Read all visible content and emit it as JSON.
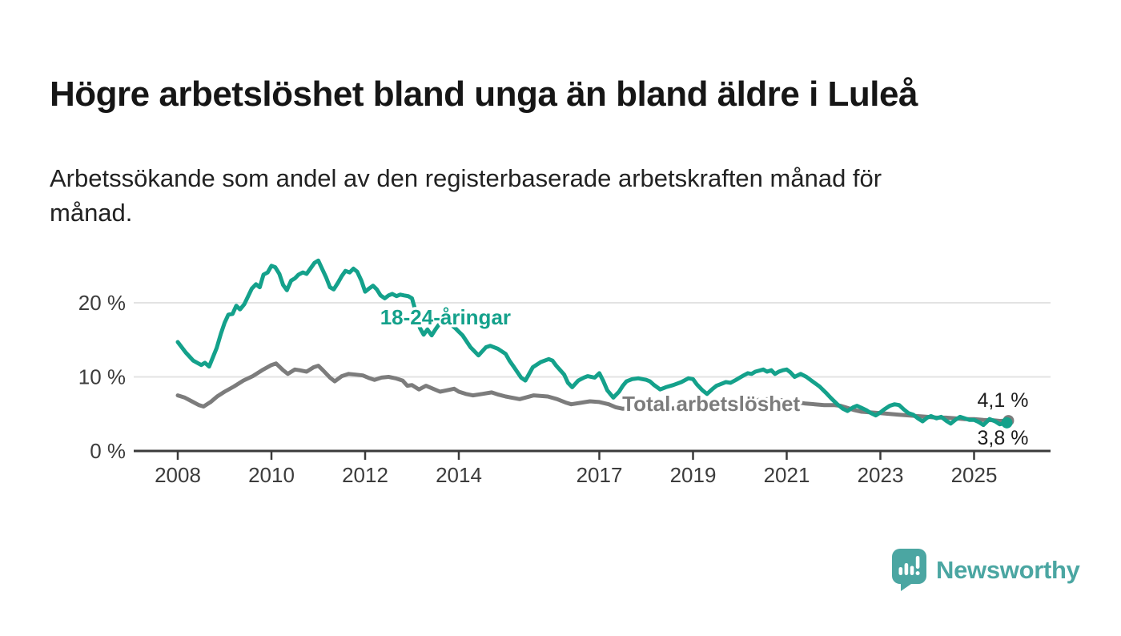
{
  "header": {
    "title": "Högre arbetslöshet bland unga än bland äldre i Luleå",
    "subtitle_line1": "Arbetssökande som andel av den registerbaserade arbetskraften månad för",
    "subtitle_line2": "månad."
  },
  "footer": {
    "brand": "Newsworthy",
    "brand_color": "#4BA6A2",
    "logo_icon": "newsworthy-speech-bubble-bar-chart-icon"
  },
  "chart_data": {
    "type": "line",
    "title": "Högre arbetslöshet bland unga än bland äldre i Luleå",
    "subtitle": "Arbetssökande som andel av den registerbaserade arbetskraften månad för månad.",
    "xlabel": "",
    "ylabel": "",
    "unit": "%",
    "grid": "horizontal gridlines at 10 % and 20 % only",
    "legend_position": "inline labels on lines",
    "x_axis": {
      "ticks": [
        2008,
        2010,
        2012,
        2014,
        2017,
        2019,
        2021,
        2023,
        2025
      ],
      "range": [
        2007.1,
        2026.6
      ]
    },
    "y_axis": {
      "ticks": [
        {
          "value": 0,
          "label": "0 %"
        },
        {
          "value": 10,
          "label": "10 %"
        },
        {
          "value": 20,
          "label": "20 %"
        }
      ],
      "range": [
        0,
        29
      ]
    },
    "colors": {
      "youth_line": "#14A18B",
      "total_line": "#7C7C7C",
      "grid": "#E3E3E3",
      "axis": "#3A3A3A",
      "tick_text": "#3C3C3C",
      "end_label_text": "#1D1D1D"
    },
    "series": [
      {
        "name": "18-24-åringar",
        "color": "#14A18B",
        "end_value": 3.8,
        "end_label": "3,8 %",
        "end_label_side": "below",
        "label_pos": {
          "x": 2012.32,
          "y": 17.1
        },
        "points": [
          [
            2008.0,
            14.7
          ],
          [
            2008.17,
            13.3
          ],
          [
            2008.33,
            12.2
          ],
          [
            2008.5,
            11.6
          ],
          [
            2008.58,
            11.9
          ],
          [
            2008.67,
            11.4
          ],
          [
            2008.83,
            13.9
          ],
          [
            2008.92,
            15.8
          ],
          [
            2009.0,
            17.3
          ],
          [
            2009.08,
            18.4
          ],
          [
            2009.17,
            18.5
          ],
          [
            2009.25,
            19.6
          ],
          [
            2009.33,
            19.1
          ],
          [
            2009.42,
            19.8
          ],
          [
            2009.58,
            21.9
          ],
          [
            2009.67,
            22.5
          ],
          [
            2009.75,
            22.1
          ],
          [
            2009.83,
            23.8
          ],
          [
            2009.92,
            24.1
          ],
          [
            2010.0,
            25.0
          ],
          [
            2010.08,
            24.8
          ],
          [
            2010.17,
            23.9
          ],
          [
            2010.25,
            22.4
          ],
          [
            2010.33,
            21.7
          ],
          [
            2010.42,
            23.0
          ],
          [
            2010.5,
            23.3
          ],
          [
            2010.58,
            23.8
          ],
          [
            2010.67,
            24.1
          ],
          [
            2010.75,
            23.9
          ],
          [
            2010.83,
            24.6
          ],
          [
            2010.92,
            25.4
          ],
          [
            2011.0,
            25.7
          ],
          [
            2011.08,
            24.6
          ],
          [
            2011.17,
            23.4
          ],
          [
            2011.25,
            22.1
          ],
          [
            2011.33,
            21.8
          ],
          [
            2011.42,
            22.7
          ],
          [
            2011.5,
            23.6
          ],
          [
            2011.58,
            24.3
          ],
          [
            2011.67,
            24.1
          ],
          [
            2011.75,
            24.6
          ],
          [
            2011.83,
            24.2
          ],
          [
            2011.92,
            23.0
          ],
          [
            2012.0,
            21.5
          ],
          [
            2012.08,
            21.9
          ],
          [
            2012.17,
            22.3
          ],
          [
            2012.25,
            21.8
          ],
          [
            2012.33,
            21.0
          ],
          [
            2012.42,
            20.6
          ],
          [
            2012.5,
            21.0
          ],
          [
            2012.58,
            21.2
          ],
          [
            2012.67,
            20.9
          ],
          [
            2012.75,
            21.1
          ],
          [
            2012.83,
            21.0
          ],
          [
            2012.92,
            20.9
          ],
          [
            2013.0,
            20.6
          ],
          [
            2013.08,
            18.8
          ],
          [
            2013.17,
            16.6
          ],
          [
            2013.25,
            15.7
          ],
          [
            2013.33,
            16.4
          ],
          [
            2013.42,
            15.6
          ],
          [
            2013.5,
            16.4
          ],
          [
            2013.58,
            17.1
          ],
          [
            2013.75,
            17.5
          ],
          [
            2013.92,
            16.6
          ],
          [
            2014.0,
            16.1
          ],
          [
            2014.08,
            15.6
          ],
          [
            2014.25,
            14.0
          ],
          [
            2014.42,
            12.9
          ],
          [
            2014.58,
            14.0
          ],
          [
            2014.67,
            14.2
          ],
          [
            2014.83,
            13.8
          ],
          [
            2015.0,
            13.1
          ],
          [
            2015.08,
            12.2
          ],
          [
            2015.17,
            11.4
          ],
          [
            2015.33,
            9.9
          ],
          [
            2015.42,
            9.5
          ],
          [
            2015.58,
            11.3
          ],
          [
            2015.75,
            12.0
          ],
          [
            2015.92,
            12.4
          ],
          [
            2016.0,
            12.2
          ],
          [
            2016.08,
            11.5
          ],
          [
            2016.25,
            10.3
          ],
          [
            2016.33,
            9.2
          ],
          [
            2016.42,
            8.6
          ],
          [
            2016.55,
            9.5
          ],
          [
            2016.67,
            9.9
          ],
          [
            2016.75,
            10.1
          ],
          [
            2016.9,
            9.9
          ],
          [
            2017.0,
            10.5
          ],
          [
            2017.08,
            9.5
          ],
          [
            2017.17,
            8.2
          ],
          [
            2017.3,
            7.2
          ],
          [
            2017.42,
            8.0
          ],
          [
            2017.5,
            8.8
          ],
          [
            2017.58,
            9.4
          ],
          [
            2017.7,
            9.7
          ],
          [
            2017.83,
            9.8
          ],
          [
            2017.92,
            9.7
          ],
          [
            2018.0,
            9.6
          ],
          [
            2018.08,
            9.4
          ],
          [
            2018.17,
            8.9
          ],
          [
            2018.3,
            8.3
          ],
          [
            2018.42,
            8.6
          ],
          [
            2018.58,
            8.9
          ],
          [
            2018.75,
            9.3
          ],
          [
            2018.9,
            9.8
          ],
          [
            2019.0,
            9.7
          ],
          [
            2019.08,
            9.0
          ],
          [
            2019.2,
            8.2
          ],
          [
            2019.3,
            7.7
          ],
          [
            2019.42,
            8.4
          ],
          [
            2019.5,
            8.8
          ],
          [
            2019.58,
            9.0
          ],
          [
            2019.7,
            9.3
          ],
          [
            2019.8,
            9.2
          ],
          [
            2019.92,
            9.6
          ],
          [
            2020.0,
            9.9
          ],
          [
            2020.08,
            10.2
          ],
          [
            2020.17,
            10.5
          ],
          [
            2020.25,
            10.4
          ],
          [
            2020.33,
            10.7
          ],
          [
            2020.5,
            11.0
          ],
          [
            2020.58,
            10.7
          ],
          [
            2020.67,
            10.9
          ],
          [
            2020.75,
            10.4
          ],
          [
            2020.83,
            10.7
          ],
          [
            2020.92,
            10.9
          ],
          [
            2021.0,
            11.0
          ],
          [
            2021.08,
            10.6
          ],
          [
            2021.17,
            10.0
          ],
          [
            2021.3,
            10.4
          ],
          [
            2021.42,
            10.0
          ],
          [
            2021.55,
            9.4
          ],
          [
            2021.7,
            8.7
          ],
          [
            2021.83,
            7.9
          ],
          [
            2021.95,
            7.1
          ],
          [
            2022.08,
            6.3
          ],
          [
            2022.2,
            5.7
          ],
          [
            2022.3,
            5.4
          ],
          [
            2022.42,
            5.9
          ],
          [
            2022.5,
            6.1
          ],
          [
            2022.6,
            5.8
          ],
          [
            2022.7,
            5.5
          ],
          [
            2022.8,
            5.1
          ],
          [
            2022.9,
            4.8
          ],
          [
            2023.0,
            5.2
          ],
          [
            2023.08,
            5.6
          ],
          [
            2023.2,
            6.1
          ],
          [
            2023.3,
            6.3
          ],
          [
            2023.4,
            6.2
          ],
          [
            2023.5,
            5.6
          ],
          [
            2023.6,
            5.1
          ],
          [
            2023.7,
            4.9
          ],
          [
            2023.8,
            4.4
          ],
          [
            2023.9,
            4.0
          ],
          [
            2024.0,
            4.5
          ],
          [
            2024.08,
            4.7
          ],
          [
            2024.2,
            4.4
          ],
          [
            2024.3,
            4.6
          ],
          [
            2024.4,
            4.1
          ],
          [
            2024.5,
            3.7
          ],
          [
            2024.6,
            4.2
          ],
          [
            2024.7,
            4.6
          ],
          [
            2024.8,
            4.4
          ],
          [
            2024.9,
            4.2
          ],
          [
            2025.0,
            4.2
          ],
          [
            2025.1,
            3.9
          ],
          [
            2025.2,
            3.5
          ],
          [
            2025.33,
            4.3
          ],
          [
            2025.45,
            4.0
          ],
          [
            2025.55,
            3.6
          ],
          [
            2025.7,
            3.8
          ]
        ]
      },
      {
        "name": "Total arbetslöshet",
        "color": "#7C7C7C",
        "end_value": 4.1,
        "end_label": "4,1 %",
        "end_label_side": "above",
        "label_pos": {
          "x": 2017.49,
          "y": 5.4
        },
        "points": [
          [
            2008.0,
            7.5
          ],
          [
            2008.15,
            7.2
          ],
          [
            2008.3,
            6.7
          ],
          [
            2008.45,
            6.2
          ],
          [
            2008.55,
            6.0
          ],
          [
            2008.7,
            6.6
          ],
          [
            2008.85,
            7.4
          ],
          [
            2009.0,
            8.0
          ],
          [
            2009.2,
            8.7
          ],
          [
            2009.4,
            9.5
          ],
          [
            2009.6,
            10.1
          ],
          [
            2009.8,
            10.9
          ],
          [
            2010.0,
            11.6
          ],
          [
            2010.1,
            11.8
          ],
          [
            2010.25,
            10.9
          ],
          [
            2010.35,
            10.4
          ],
          [
            2010.5,
            11.0
          ],
          [
            2010.6,
            10.9
          ],
          [
            2010.75,
            10.7
          ],
          [
            2010.9,
            11.3
          ],
          [
            2011.0,
            11.5
          ],
          [
            2011.1,
            10.9
          ],
          [
            2011.25,
            9.9
          ],
          [
            2011.35,
            9.4
          ],
          [
            2011.5,
            10.1
          ],
          [
            2011.65,
            10.4
          ],
          [
            2011.8,
            10.3
          ],
          [
            2011.95,
            10.2
          ],
          [
            2012.1,
            9.8
          ],
          [
            2012.2,
            9.6
          ],
          [
            2012.35,
            9.9
          ],
          [
            2012.5,
            10.0
          ],
          [
            2012.65,
            9.8
          ],
          [
            2012.8,
            9.5
          ],
          [
            2012.9,
            8.8
          ],
          [
            2013.0,
            8.9
          ],
          [
            2013.15,
            8.3
          ],
          [
            2013.3,
            8.8
          ],
          [
            2013.45,
            8.4
          ],
          [
            2013.6,
            8.0
          ],
          [
            2013.75,
            8.2
          ],
          [
            2013.9,
            8.4
          ],
          [
            2014.0,
            8.0
          ],
          [
            2014.15,
            7.7
          ],
          [
            2014.3,
            7.5
          ],
          [
            2014.5,
            7.7
          ],
          [
            2014.7,
            7.9
          ],
          [
            2014.85,
            7.6
          ],
          [
            2015.0,
            7.35
          ],
          [
            2015.3,
            7.0
          ],
          [
            2015.6,
            7.5
          ],
          [
            2015.9,
            7.35
          ],
          [
            2016.1,
            7.0
          ],
          [
            2016.3,
            6.5
          ],
          [
            2016.4,
            6.3
          ],
          [
            2016.6,
            6.5
          ],
          [
            2016.8,
            6.7
          ],
          [
            2017.0,
            6.6
          ],
          [
            2017.2,
            6.3
          ],
          [
            2017.35,
            5.9
          ],
          [
            2017.5,
            5.7
          ],
          [
            2017.7,
            5.8
          ],
          [
            2017.9,
            5.9
          ],
          [
            2018.1,
            6.1
          ],
          [
            2018.3,
            5.9
          ],
          [
            2018.5,
            5.7
          ],
          [
            2018.7,
            5.8
          ],
          [
            2019.0,
            6.0
          ],
          [
            2019.2,
            5.7
          ],
          [
            2019.4,
            5.6
          ],
          [
            2019.6,
            5.7
          ],
          [
            2019.8,
            5.9
          ],
          [
            2020.0,
            6.2
          ],
          [
            2020.2,
            6.6
          ],
          [
            2020.4,
            6.9
          ],
          [
            2020.6,
            7.0
          ],
          [
            2020.8,
            6.9
          ],
          [
            2021.0,
            6.8
          ],
          [
            2021.2,
            6.6
          ],
          [
            2021.4,
            6.4
          ],
          [
            2021.6,
            6.3
          ],
          [
            2021.8,
            6.2
          ],
          [
            2022.0,
            6.2
          ],
          [
            2022.15,
            6.1
          ],
          [
            2022.3,
            5.8
          ],
          [
            2022.45,
            5.5
          ],
          [
            2022.6,
            5.3
          ],
          [
            2022.8,
            5.2
          ],
          [
            2023.0,
            5.1
          ],
          [
            2023.2,
            5.0
          ],
          [
            2023.4,
            4.9
          ],
          [
            2023.6,
            4.8
          ],
          [
            2023.8,
            4.7
          ],
          [
            2024.0,
            4.6
          ],
          [
            2024.2,
            4.5
          ],
          [
            2024.4,
            4.5
          ],
          [
            2024.6,
            4.4
          ],
          [
            2024.8,
            4.3
          ],
          [
            2025.0,
            4.3
          ],
          [
            2025.2,
            4.2
          ],
          [
            2025.4,
            4.15
          ],
          [
            2025.55,
            4.05
          ],
          [
            2025.7,
            4.1
          ]
        ]
      }
    ]
  }
}
